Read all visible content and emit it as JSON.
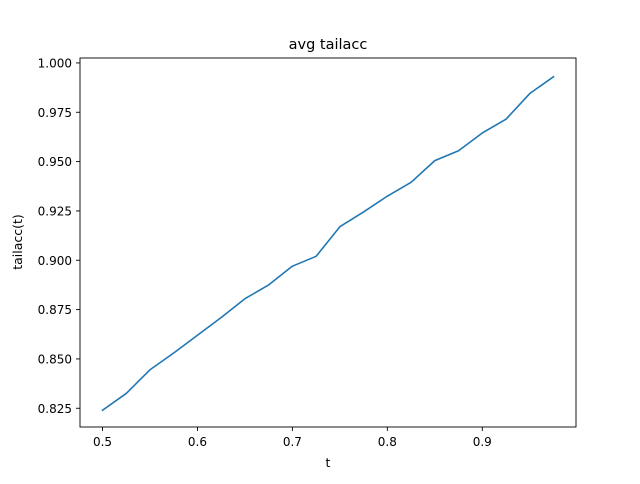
{
  "chart_data": {
    "type": "line",
    "title": "avg tailacc",
    "xlabel": "t",
    "ylabel": "tailacc(t)",
    "xlim": [
      0.4763,
      0.9987
    ],
    "ylim": [
      0.8155,
      1.0025
    ],
    "xticks": [
      0.5,
      0.6,
      0.7,
      0.8,
      0.9
    ],
    "xtick_labels": [
      "0.5",
      "0.6",
      "0.7",
      "0.8",
      "0.9"
    ],
    "yticks": [
      0.825,
      0.85,
      0.875,
      0.9,
      0.925,
      0.95,
      0.975,
      1.0
    ],
    "ytick_labels": [
      "0.825",
      "0.850",
      "0.875",
      "0.900",
      "0.925",
      "0.950",
      "0.975",
      "1.000"
    ],
    "grid": false,
    "series": [
      {
        "color": "#1f77b4",
        "x": [
          0.5,
          0.525,
          0.55,
          0.575,
          0.6,
          0.625,
          0.65,
          0.675,
          0.7,
          0.725,
          0.75,
          0.775,
          0.8,
          0.825,
          0.85,
          0.875,
          0.9,
          0.925,
          0.95,
          0.975
        ],
        "y": [
          0.824,
          0.8325,
          0.8445,
          0.853,
          0.862,
          0.871,
          0.8805,
          0.8875,
          0.897,
          0.902,
          0.917,
          0.9245,
          0.9325,
          0.9395,
          0.9505,
          0.9555,
          0.9645,
          0.9715,
          0.9845,
          0.993
        ]
      }
    ]
  }
}
